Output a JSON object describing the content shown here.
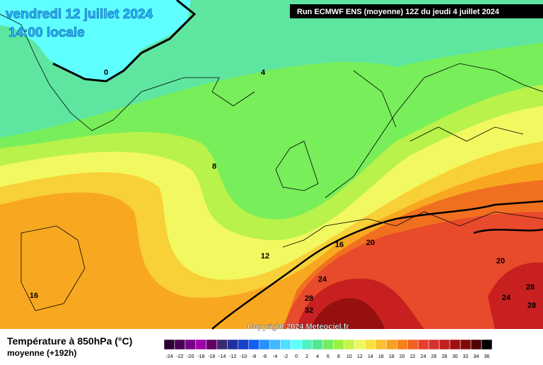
{
  "header": {
    "title": "vendredi 12 juillet 2024",
    "time": "14:00 locale",
    "run": "Run ECMWF ENS (moyenne) 12Z du jeudi 4 juillet 2024"
  },
  "map": {
    "contour_labels": [
      "0",
      "4",
      "8",
      "12",
      "16",
      "16",
      "20",
      "20",
      "24",
      "24",
      "28",
      "28",
      "28",
      "32"
    ],
    "copyright": "Copyright 2024 Meteociel.fr"
  },
  "legend": {
    "title": "Température à 850hPa (°C)",
    "subtitle": "moyenne   (+192h)",
    "ticks": [
      -24,
      -22,
      -20,
      -18,
      -16,
      -14,
      -12,
      -10,
      -8,
      -6,
      -4,
      -2,
      0,
      2,
      4,
      6,
      8,
      10,
      12,
      14,
      16,
      18,
      20,
      22,
      24,
      26,
      28,
      30,
      32,
      34,
      36
    ],
    "colors": [
      "#2a0030",
      "#4a0050",
      "#780088",
      "#a000a8",
      "#600060",
      "#3a2a70",
      "#20309a",
      "#1840c8",
      "#1060f0",
      "#2890ff",
      "#40b8ff",
      "#50e0ff",
      "#60ffff",
      "#50f0c0",
      "#50e890",
      "#70ee60",
      "#98f040",
      "#c8f448",
      "#f0f860",
      "#f8e040",
      "#f8c030",
      "#f8a020",
      "#f88018",
      "#f06020",
      "#e84028",
      "#d83030",
      "#c02020",
      "#a01010",
      "#800808",
      "#500000",
      "#000000"
    ]
  }
}
